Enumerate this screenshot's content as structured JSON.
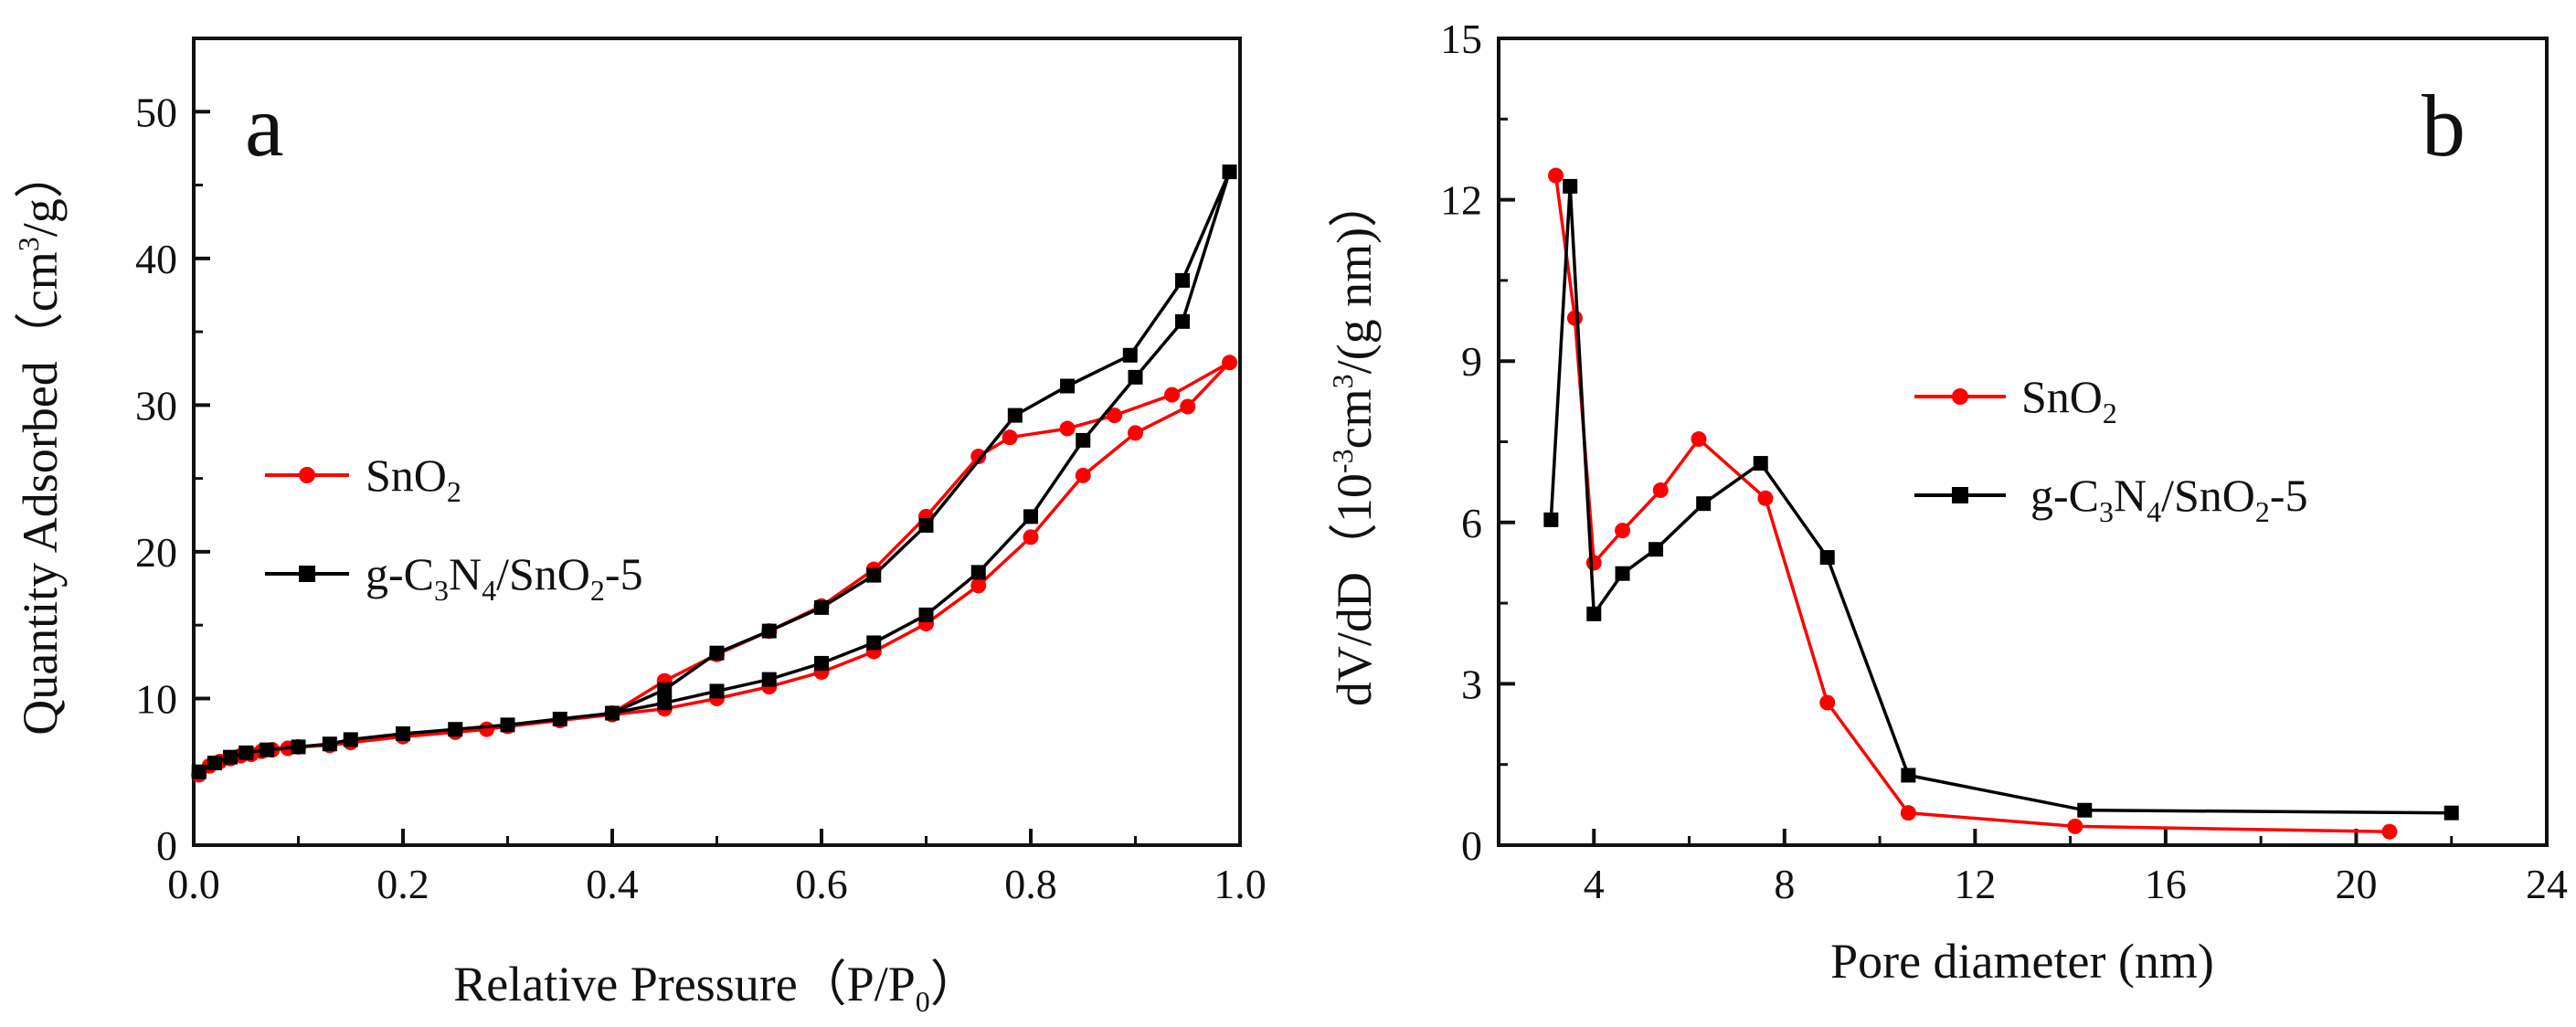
{
  "colors": {
    "sno2": "#ff0000",
    "gcn": "#000000",
    "axis": "#111111",
    "background": "#ffffff"
  },
  "chart_data": [
    {
      "panel": "a",
      "type": "line",
      "title": "",
      "xlabel": "Relative Pressure（P/P0）",
      "xlabel_parts": {
        "main": "Relative Pressure（P/P",
        "sub": "0",
        "tail": "）"
      },
      "ylabel": "Quantity Adsorbed（cm3/g）",
      "ylabel_parts": {
        "main": "Quantity Adsorbed（cm",
        "sup": "3",
        "tail": "/g）"
      },
      "xlim": [
        0.0,
        1.0
      ],
      "ylim": [
        0,
        55
      ],
      "xticks": [
        0.0,
        0.2,
        0.4,
        0.6,
        0.8,
        1.0
      ],
      "xtick_labels": [
        "0.0",
        "0.2",
        "0.4",
        "0.6",
        "0.8",
        "1.0"
      ],
      "yticks": [
        0,
        10,
        20,
        30,
        40,
        50
      ],
      "ytick_labels": [
        "0",
        "10",
        "20",
        "30",
        "40",
        "50"
      ],
      "legend_position": "center-left",
      "series": [
        {
          "name": "SnO2",
          "name_parts": [
            {
              "t": "SnO"
            },
            {
              "t": "2",
              "s": "sub"
            }
          ],
          "color_key": "sno2",
          "marker": "circle",
          "x": [
            0.005,
            0.015,
            0.025,
            0.035,
            0.045,
            0.055,
            0.065,
            0.075,
            0.09,
            0.1,
            0.13,
            0.15,
            0.2,
            0.25,
            0.28,
            0.3,
            0.35,
            0.4,
            0.45,
            0.5,
            0.55,
            0.6,
            0.65,
            0.7,
            0.75,
            0.8,
            0.85,
            0.9,
            0.95,
            0.99,
            0.935,
            0.88,
            0.835,
            0.78,
            0.75,
            0.7,
            0.65,
            0.6,
            0.55,
            0.5,
            0.45,
            0.4
          ],
          "values": [
            4.8,
            5.4,
            5.7,
            5.9,
            6.1,
            6.2,
            6.4,
            6.5,
            6.6,
            6.7,
            6.8,
            7.0,
            7.4,
            7.7,
            7.9,
            8.1,
            8.5,
            8.9,
            9.3,
            10.0,
            10.8,
            11.8,
            13.2,
            15.1,
            17.7,
            21.0,
            25.2,
            28.1,
            29.9,
            32.9,
            30.7,
            29.3,
            28.4,
            27.8,
            26.5,
            22.4,
            18.8,
            16.3,
            14.6,
            13.0,
            11.2,
            9.0
          ]
        },
        {
          "name": "g-C3N4/SnO2-5",
          "name_parts": [
            {
              "t": "g-C"
            },
            {
              "t": "3",
              "s": "sub"
            },
            {
              "t": "N"
            },
            {
              "t": "4",
              "s": "sub"
            },
            {
              "t": "/SnO"
            },
            {
              "t": "2",
              "s": "sub"
            },
            {
              "t": "-5"
            }
          ],
          "color_key": "gcn",
          "marker": "square",
          "x": [
            0.005,
            0.02,
            0.035,
            0.05,
            0.07,
            0.1,
            0.13,
            0.15,
            0.2,
            0.25,
            0.3,
            0.35,
            0.4,
            0.45,
            0.5,
            0.55,
            0.6,
            0.65,
            0.7,
            0.75,
            0.8,
            0.85,
            0.9,
            0.945,
            0.99,
            0.945,
            0.895,
            0.835,
            0.785,
            0.7,
            0.65,
            0.6,
            0.55,
            0.5,
            0.45,
            0.4
          ],
          "values": [
            5.0,
            5.6,
            6.0,
            6.3,
            6.5,
            6.7,
            6.9,
            7.2,
            7.6,
            7.9,
            8.2,
            8.6,
            9.0,
            9.7,
            10.5,
            11.3,
            12.4,
            13.8,
            15.7,
            18.6,
            22.4,
            27.6,
            31.9,
            35.7,
            45.9,
            38.5,
            33.4,
            31.3,
            29.3,
            21.8,
            18.4,
            16.2,
            14.6,
            13.1,
            10.6,
            9.0
          ]
        }
      ]
    },
    {
      "panel": "b",
      "type": "line",
      "title": "",
      "xlabel": "Pore diameter (nm)",
      "ylabel": "dV/dD（10-3cm3/(g nm)）",
      "ylabel_parts": {
        "main": "dV/dD（10",
        "sup1": "-3",
        "mid": "cm",
        "sup2": "3",
        "tail": "/(g nm)）"
      },
      "xlim": [
        2.0,
        24.0
      ],
      "ylim": [
        0,
        15
      ],
      "xticks": [
        4,
        8,
        12,
        16,
        20,
        24
      ],
      "xtick_labels": [
        "4",
        "8",
        "12",
        "16",
        "20",
        "24"
      ],
      "yticks": [
        0,
        3,
        6,
        9,
        12,
        15
      ],
      "ytick_labels": [
        "0",
        "3",
        "6",
        "9",
        "12",
        "15"
      ],
      "legend_position": "center-right",
      "series": [
        {
          "name": "SnO2",
          "name_parts": [
            {
              "t": "SnO"
            },
            {
              "t": "2",
              "s": "sub"
            }
          ],
          "color_key": "sno2",
          "marker": "circle",
          "x": [
            3.2,
            3.6,
            4.0,
            4.6,
            5.4,
            6.2,
            7.6,
            8.9,
            10.6,
            14.1,
            20.7
          ],
          "values": [
            12.45,
            9.8,
            5.25,
            5.85,
            6.6,
            7.55,
            6.45,
            2.65,
            0.6,
            0.35,
            0.25
          ]
        },
        {
          "name": "g-C3N4/SnO2-5",
          "name_parts": [
            {
              "t": "g-C"
            },
            {
              "t": "3",
              "s": "sub"
            },
            {
              "t": "N"
            },
            {
              "t": "4",
              "s": "sub"
            },
            {
              "t": "/SnO"
            },
            {
              "t": "2",
              "s": "sub"
            },
            {
              "t": "-5"
            }
          ],
          "color_key": "gcn",
          "marker": "square",
          "x": [
            3.1,
            3.5,
            4.0,
            4.6,
            5.3,
            6.3,
            7.5,
            8.9,
            10.6,
            14.3,
            22.0
          ],
          "values": [
            6.05,
            12.25,
            4.3,
            5.05,
            5.5,
            6.35,
            7.1,
            5.35,
            1.3,
            0.65,
            0.6
          ]
        }
      ]
    }
  ],
  "panel_a": {
    "letter": "a"
  },
  "panel_b": {
    "letter": "b"
  }
}
